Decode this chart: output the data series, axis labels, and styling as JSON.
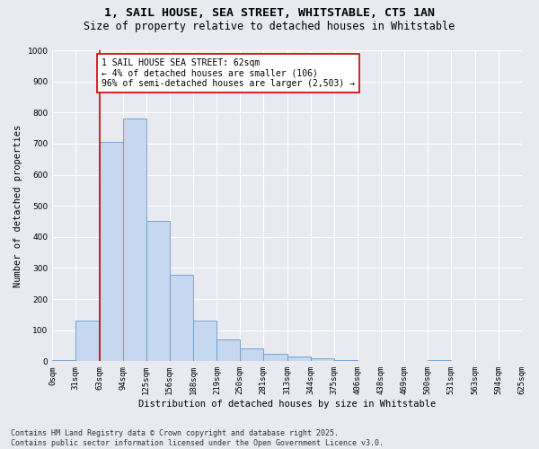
{
  "title_line1": "1, SAIL HOUSE, SEA STREET, WHITSTABLE, CT5 1AN",
  "title_line2": "Size of property relative to detached houses in Whitstable",
  "xlabel": "Distribution of detached houses by size in Whitstable",
  "ylabel": "Number of detached properties",
  "bar_color": "#c5d8f0",
  "bar_edge_color": "#6699cc",
  "background_color": "#e8eaf0",
  "plot_bg_color": "#e8eaf0",
  "grid_color": "#ffffff",
  "bins": [
    0,
    31,
    63,
    94,
    125,
    156,
    188,
    219,
    250,
    281,
    313,
    344,
    375,
    406,
    438,
    469,
    500,
    531,
    563,
    594,
    625
  ],
  "bin_labels": [
    "0sqm",
    "31sqm",
    "63sqm",
    "94sqm",
    "125sqm",
    "156sqm",
    "188sqm",
    "219sqm",
    "250sqm",
    "281sqm",
    "313sqm",
    "344sqm",
    "375sqm",
    "406sqm",
    "438sqm",
    "469sqm",
    "500sqm",
    "531sqm",
    "563sqm",
    "594sqm",
    "625sqm"
  ],
  "values": [
    5,
    130,
    705,
    780,
    450,
    278,
    130,
    70,
    40,
    25,
    15,
    10,
    5,
    0,
    0,
    0,
    5,
    0,
    0,
    0
  ],
  "ylim": [
    0,
    1000
  ],
  "yticks": [
    0,
    100,
    200,
    300,
    400,
    500,
    600,
    700,
    800,
    900,
    1000
  ],
  "vline_x": 63,
  "vline_color": "#cc0000",
  "annotation_text": "1 SAIL HOUSE SEA STREET: 62sqm\n← 4% of detached houses are smaller (106)\n96% of semi-detached houses are larger (2,503) →",
  "annotation_box_color": "#cc0000",
  "annotation_text_color": "#000000",
  "footer_line1": "Contains HM Land Registry data © Crown copyright and database right 2025.",
  "footer_line2": "Contains public sector information licensed under the Open Government Licence v3.0.",
  "title_fontsize": 9.5,
  "subtitle_fontsize": 8.5,
  "axis_label_fontsize": 7.5,
  "tick_fontsize": 6.5,
  "annotation_fontsize": 7,
  "footer_fontsize": 6
}
